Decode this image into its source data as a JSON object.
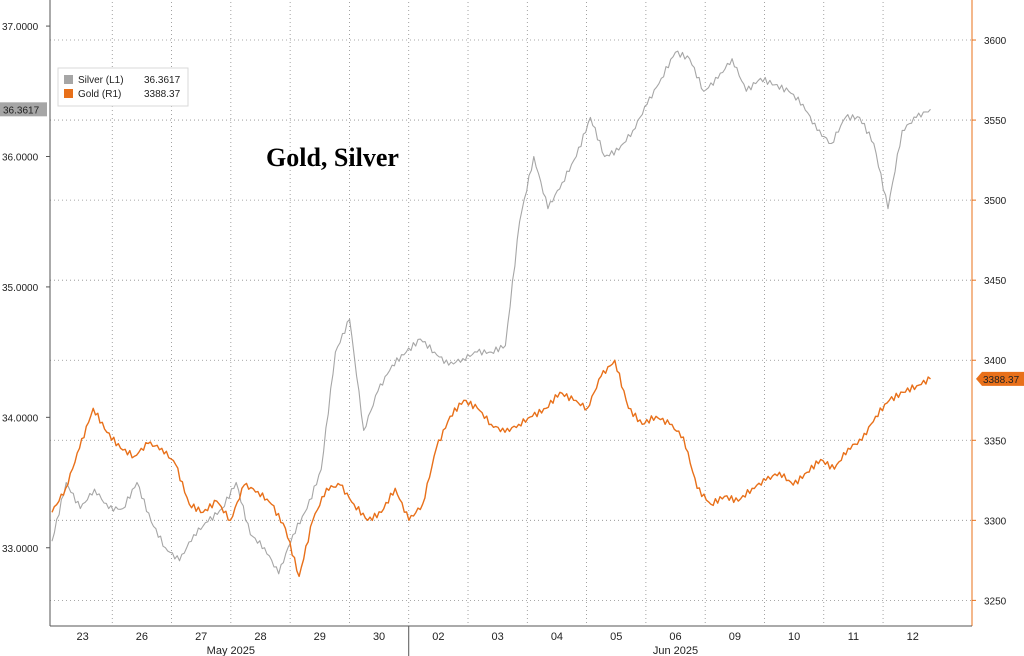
{
  "chart_data": {
    "type": "line",
    "title": "Gold, Silver",
    "x_labels": [
      "23",
      "26",
      "27",
      "28",
      "29",
      "30",
      "02",
      "03",
      "04",
      "05",
      "06",
      "09",
      "10",
      "11",
      "12"
    ],
    "month_labels": [
      "May 2025",
      "Jun 2025"
    ],
    "y_left": {
      "ticks": [
        "33.0000",
        "34.0000",
        "35.0000",
        "36.0000",
        "37.0000"
      ],
      "range": [
        32.4,
        37.2
      ]
    },
    "y_right": {
      "ticks": [
        "3250",
        "3300",
        "3350",
        "3400",
        "3450",
        "3500",
        "3550",
        "3600"
      ],
      "range": [
        3234,
        3625
      ]
    },
    "grid": true,
    "legend_position": "top-left",
    "series": [
      {
        "name": "Silver (L1)",
        "legend_value": "36.3617",
        "axis": "left",
        "color": "#a6a6a6",
        "last_label": "36.3617",
        "values": [
          33.05,
          33.5,
          33.3,
          33.45,
          33.3,
          33.3,
          33.5,
          33.2,
          33.0,
          32.9,
          33.1,
          33.2,
          33.3,
          33.5,
          33.1,
          33.0,
          32.8,
          33.1,
          33.3,
          33.6,
          34.5,
          34.75,
          33.9,
          34.2,
          34.4,
          34.5,
          34.6,
          34.5,
          34.4,
          34.45,
          34.5,
          34.5,
          34.55,
          35.5,
          36.0,
          35.6,
          35.8,
          36.0,
          36.3,
          36.0,
          36.05,
          36.2,
          36.4,
          36.6,
          36.8,
          36.75,
          36.5,
          36.6,
          36.75,
          36.5,
          36.6,
          36.55,
          36.5,
          36.4,
          36.2,
          36.1,
          36.3,
          36.3,
          36.1,
          35.6,
          36.2,
          36.3,
          36.3617
        ]
      },
      {
        "name": "Gold (R1)",
        "legend_value": "3388.37",
        "axis": "right",
        "color": "#e8701a",
        "last_label": "3388.37",
        "values": [
          3305,
          3320,
          3345,
          3370,
          3355,
          3345,
          3340,
          3348,
          3345,
          3335,
          3310,
          3305,
          3312,
          3300,
          3322,
          3318,
          3310,
          3295,
          3265,
          3300,
          3320,
          3322,
          3310,
          3300,
          3305,
          3320,
          3300,
          3310,
          3345,
          3365,
          3375,
          3370,
          3360,
          3355,
          3360,
          3365,
          3370,
          3380,
          3375,
          3370,
          3390,
          3400,
          3370,
          3360,
          3365,
          3360,
          3352,
          3320,
          3310,
          3315,
          3312,
          3320,
          3325,
          3330,
          3322,
          3330,
          3338,
          3332,
          3345,
          3350,
          3365,
          3375,
          3380,
          3384,
          3388.37
        ]
      }
    ]
  }
}
